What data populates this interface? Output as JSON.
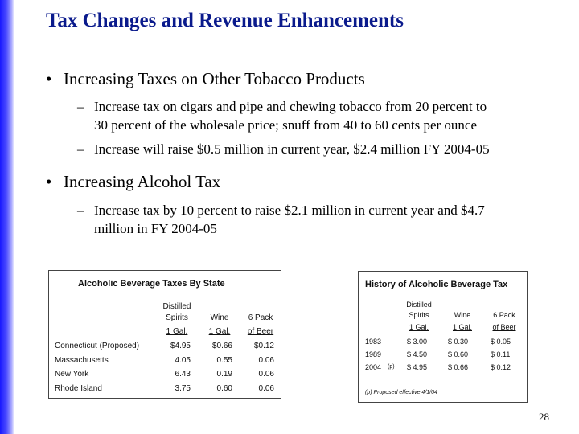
{
  "title": "Tax Changes and Revenue Enhancements",
  "bullets": [
    {
      "text": "Increasing Taxes on Other Tobacco Products",
      "subs": [
        {
          "line1": "Increase tax on cigars and pipe and chewing tobacco from 20 percent to",
          "line2": "30 percent of the wholesale price; snuff  from 40 to 60 cents per ounce"
        },
        {
          "line1": "Increase will raise $0.5 million in current year, $2.4 million FY 2004-05"
        }
      ]
    },
    {
      "text": "Increasing Alcohol Tax",
      "subs": [
        {
          "line1": "Increase tax by 10 percent to raise $2.1 million in current year and $4.7",
          "line2": "million in FY 2004-05"
        }
      ]
    }
  ],
  "bullet_glyph": "•",
  "dash_glyph": "–",
  "table1": {
    "title": "Alcoholic Beverage Taxes By State",
    "headers": {
      "col1": [
        "Distilled",
        "Spirits",
        "1 Gal."
      ],
      "col2": [
        "Wine",
        "1 Gal."
      ],
      "col3": [
        "6 Pack",
        "of Beer"
      ]
    },
    "rows": [
      {
        "state": "Connecticut (Proposed)",
        "spirits": "$4.95",
        "wine": "$0.66",
        "beer": "$0.12"
      },
      {
        "state": "Massachusetts",
        "spirits": "4.05",
        "wine": "0.55",
        "beer": "0.06"
      },
      {
        "state": "New York",
        "spirits": "6.43",
        "wine": "0.19",
        "beer": "0.06"
      },
      {
        "state": "Rhode Island",
        "spirits": "3.75",
        "wine": "0.60",
        "beer": "0.06"
      }
    ]
  },
  "table2": {
    "title": "History of Alcoholic Beverage Tax",
    "headers": {
      "col1": [
        "Distilled",
        "Spirits",
        "1 Gal."
      ],
      "col2": [
        "Wine",
        "1 Gal."
      ],
      "col3": [
        "6 Pack",
        "of Beer"
      ]
    },
    "rows": [
      {
        "year": "1983",
        "flag": "",
        "spirits": "$ 3.00",
        "wine": "$ 0.30",
        "beer": "$ 0.05"
      },
      {
        "year": "1989",
        "flag": "",
        "spirits": "$ 4.50",
        "wine": "$ 0.60",
        "beer": "$ 0.11"
      },
      {
        "year": "2004",
        "flag": "(p)",
        "spirits": "$ 4.95",
        "wine": "$ 0.66",
        "beer": "$ 0.12"
      }
    ],
    "footnote": "(p) Proposed effective 4/1/04"
  },
  "page_number": "28"
}
